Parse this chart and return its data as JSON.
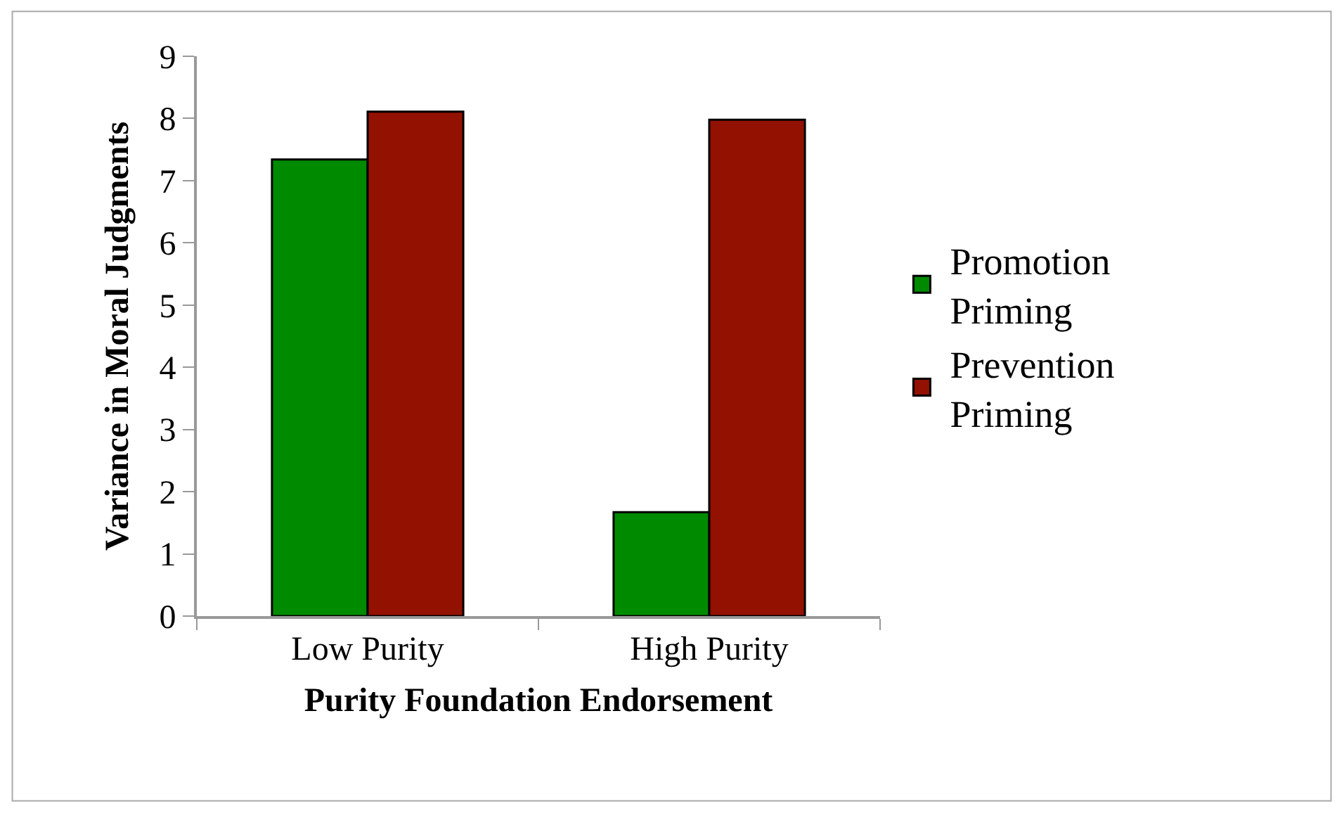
{
  "chart_data": {
    "type": "bar",
    "xlabel": "Purity Foundation Endorsement",
    "ylabel": "Variance in Moral Judgments",
    "categories": [
      "Low Purity",
      "High Purity"
    ],
    "series": [
      {
        "name": "Promotion Priming",
        "color": "#008a00",
        "values": [
          7.34,
          1.67
        ]
      },
      {
        "name": "Prevention Priming",
        "color": "#931100",
        "values": [
          8.11,
          7.98
        ]
      }
    ],
    "ylim": [
      0,
      9
    ],
    "yticks": [
      0,
      1,
      2,
      3,
      4,
      5,
      6,
      7,
      8,
      9
    ],
    "legend": "right"
  }
}
